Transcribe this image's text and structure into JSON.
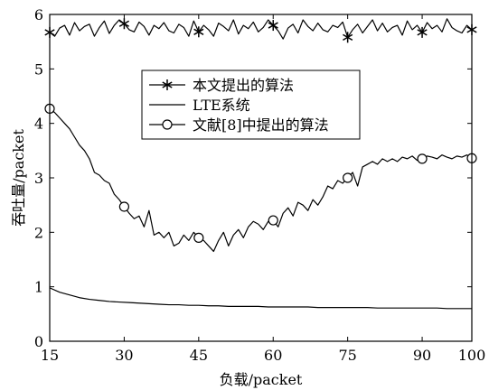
{
  "chart_data": {
    "type": "line",
    "title": "",
    "xlabel": "负载/packet",
    "ylabel": "吞吐量/packet",
    "xlim": [
      15,
      100
    ],
    "ylim": [
      0,
      6
    ],
    "xticks": [
      15,
      30,
      45,
      60,
      75,
      90,
      100
    ],
    "yticks": [
      0,
      1,
      2,
      3,
      4,
      5,
      6
    ],
    "grid": false,
    "legend_position": "center",
    "series": [
      {
        "name": "本文提出的算法",
        "marker": "asterisk",
        "marker_x": [
          15,
          30,
          45,
          60,
          75,
          90,
          100
        ],
        "x": [
          15,
          16,
          17,
          18,
          19,
          20,
          21,
          22,
          23,
          24,
          25,
          26,
          27,
          28,
          29,
          30,
          31,
          32,
          33,
          34,
          35,
          36,
          37,
          38,
          39,
          40,
          41,
          42,
          43,
          44,
          45,
          46,
          47,
          48,
          49,
          50,
          51,
          52,
          53,
          54,
          55,
          56,
          57,
          58,
          59,
          60,
          61,
          62,
          63,
          64,
          65,
          66,
          67,
          68,
          69,
          70,
          71,
          72,
          73,
          74,
          75,
          76,
          77,
          78,
          79,
          80,
          81,
          82,
          83,
          84,
          85,
          86,
          87,
          88,
          89,
          90,
          91,
          92,
          93,
          94,
          95,
          96,
          97,
          98,
          99,
          100
        ],
        "values": [
          5.67,
          5.6,
          5.75,
          5.8,
          5.62,
          5.85,
          5.7,
          5.78,
          5.82,
          5.6,
          5.76,
          5.88,
          5.65,
          5.8,
          5.9,
          5.83,
          5.72,
          5.68,
          5.86,
          5.78,
          5.62,
          5.8,
          5.74,
          5.85,
          5.7,
          5.66,
          5.82,
          5.76,
          5.6,
          5.88,
          5.68,
          5.8,
          5.72,
          5.6,
          5.84,
          5.78,
          5.7,
          5.9,
          5.64,
          5.8,
          5.74,
          5.86,
          5.68,
          5.76,
          5.9,
          5.8,
          5.7,
          5.55,
          5.75,
          5.82,
          5.66,
          5.9,
          5.78,
          5.7,
          5.84,
          5.72,
          5.68,
          5.8,
          5.76,
          5.86,
          5.58,
          5.72,
          5.82,
          5.66,
          5.78,
          5.9,
          5.7,
          5.84,
          5.68,
          5.76,
          5.8,
          5.62,
          5.88,
          5.72,
          5.8,
          5.67,
          5.85,
          5.74,
          5.8,
          5.68,
          5.92,
          5.76,
          5.7,
          5.66,
          5.8,
          5.72
        ]
      },
      {
        "name": "LTE系统",
        "marker": "none",
        "x": [
          15,
          17,
          19,
          21,
          23,
          25,
          27,
          29,
          31,
          33,
          35,
          37,
          39,
          41,
          43,
          45,
          47,
          49,
          51,
          53,
          55,
          57,
          59,
          61,
          63,
          65,
          67,
          69,
          71,
          73,
          75,
          77,
          79,
          81,
          83,
          85,
          87,
          89,
          91,
          93,
          95,
          97,
          100
        ],
        "values": [
          0.98,
          0.9,
          0.85,
          0.8,
          0.77,
          0.75,
          0.73,
          0.72,
          0.71,
          0.7,
          0.69,
          0.68,
          0.67,
          0.67,
          0.66,
          0.66,
          0.65,
          0.65,
          0.64,
          0.64,
          0.64,
          0.64,
          0.63,
          0.63,
          0.63,
          0.63,
          0.63,
          0.62,
          0.62,
          0.62,
          0.62,
          0.62,
          0.62,
          0.61,
          0.61,
          0.61,
          0.61,
          0.61,
          0.61,
          0.61,
          0.6,
          0.6,
          0.6
        ]
      },
      {
        "name": "文献[8]中提出的算法",
        "marker": "circle",
        "marker_x": [
          15,
          30,
          45,
          60,
          75,
          90,
          100
        ],
        "x": [
          15,
          16,
          17,
          18,
          19,
          20,
          21,
          22,
          23,
          24,
          25,
          26,
          27,
          28,
          29,
          30,
          31,
          32,
          33,
          34,
          35,
          36,
          37,
          38,
          39,
          40,
          41,
          42,
          43,
          44,
          45,
          46,
          47,
          48,
          49,
          50,
          51,
          52,
          53,
          54,
          55,
          56,
          57,
          58,
          59,
          60,
          61,
          62,
          63,
          64,
          65,
          66,
          67,
          68,
          69,
          70,
          71,
          72,
          73,
          74,
          75,
          76,
          77,
          78,
          79,
          80,
          81,
          82,
          83,
          84,
          85,
          86,
          87,
          88,
          89,
          90,
          91,
          92,
          93,
          94,
          95,
          96,
          97,
          98,
          99,
          100
        ],
        "values": [
          4.27,
          4.2,
          4.1,
          4.0,
          3.9,
          3.75,
          3.6,
          3.5,
          3.35,
          3.1,
          3.05,
          2.95,
          2.9,
          2.7,
          2.6,
          2.47,
          2.35,
          2.25,
          2.3,
          2.1,
          2.4,
          1.95,
          2.0,
          1.9,
          2.0,
          1.75,
          1.8,
          1.95,
          1.85,
          2.0,
          1.9,
          1.85,
          1.75,
          1.65,
          1.85,
          2.0,
          1.75,
          1.95,
          2.05,
          1.9,
          2.1,
          2.2,
          2.15,
          2.05,
          2.2,
          2.22,
          2.1,
          2.35,
          2.45,
          2.3,
          2.55,
          2.5,
          2.4,
          2.6,
          2.5,
          2.65,
          2.85,
          2.8,
          2.95,
          2.9,
          3.0,
          3.1,
          2.85,
          3.2,
          3.25,
          3.3,
          3.25,
          3.35,
          3.3,
          3.35,
          3.3,
          3.38,
          3.35,
          3.4,
          3.32,
          3.35,
          3.4,
          3.38,
          3.35,
          3.42,
          3.38,
          3.35,
          3.4,
          3.38,
          3.42,
          3.36
        ]
      }
    ]
  }
}
